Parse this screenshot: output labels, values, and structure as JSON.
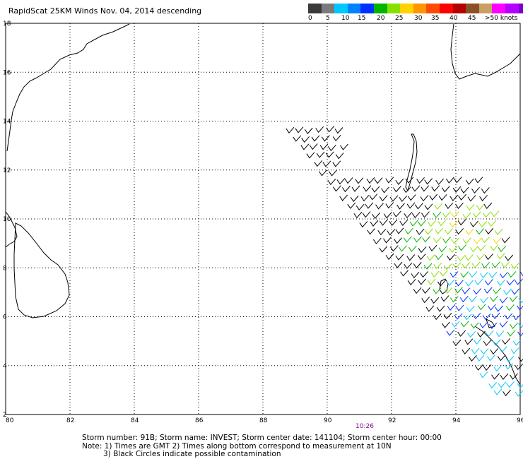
{
  "title": "RapidScat 25KM Winds Nov. 04, 2014 descending",
  "colorbar": {
    "colors": [
      "#3a3a3a",
      "#7a7a7a",
      "#00c8ff",
      "#0082ff",
      "#0030ff",
      "#00b400",
      "#88e000",
      "#ffd200",
      "#ff9600",
      "#ff4b00",
      "#ff0000",
      "#b40000",
      "#8c5028",
      "#c8a064",
      "#ff00ff",
      "#b400ff",
      "#7800c8"
    ],
    "labels": [
      "0",
      "5",
      "10",
      "15",
      "20",
      "25",
      "30",
      "35",
      "40",
      "45",
      ">50 knots"
    ]
  },
  "map": {
    "lon_ticks": [
      "80",
      "82",
      "84",
      "86",
      "88",
      "90",
      "92",
      "94",
      "96"
    ],
    "lat_ticks": [
      "18",
      "16",
      "14",
      "12",
      "10",
      "8",
      "6",
      "4",
      "2"
    ],
    "lon_range": [
      80,
      96
    ],
    "lat_range": [
      2,
      18
    ],
    "grid": true,
    "coastline_color": "#000000"
  },
  "time_label": "10:26",
  "footer": {
    "line1": "Storm number: 91B;  Storm name: INVEST;  Storm center date: 141104;  Storm center hour: 00:00",
    "line2": "Note: 1) Times are GMT  2) Times along bottom correspond to measurement at 10N",
    "line3": "3) Black Circles indicate possible contamination"
  },
  "wind_swath": {
    "color_classes": [
      "#000000",
      "#00b400",
      "#88e000",
      "#ffd200",
      "#0030ff",
      "#00c8ff"
    ]
  }
}
